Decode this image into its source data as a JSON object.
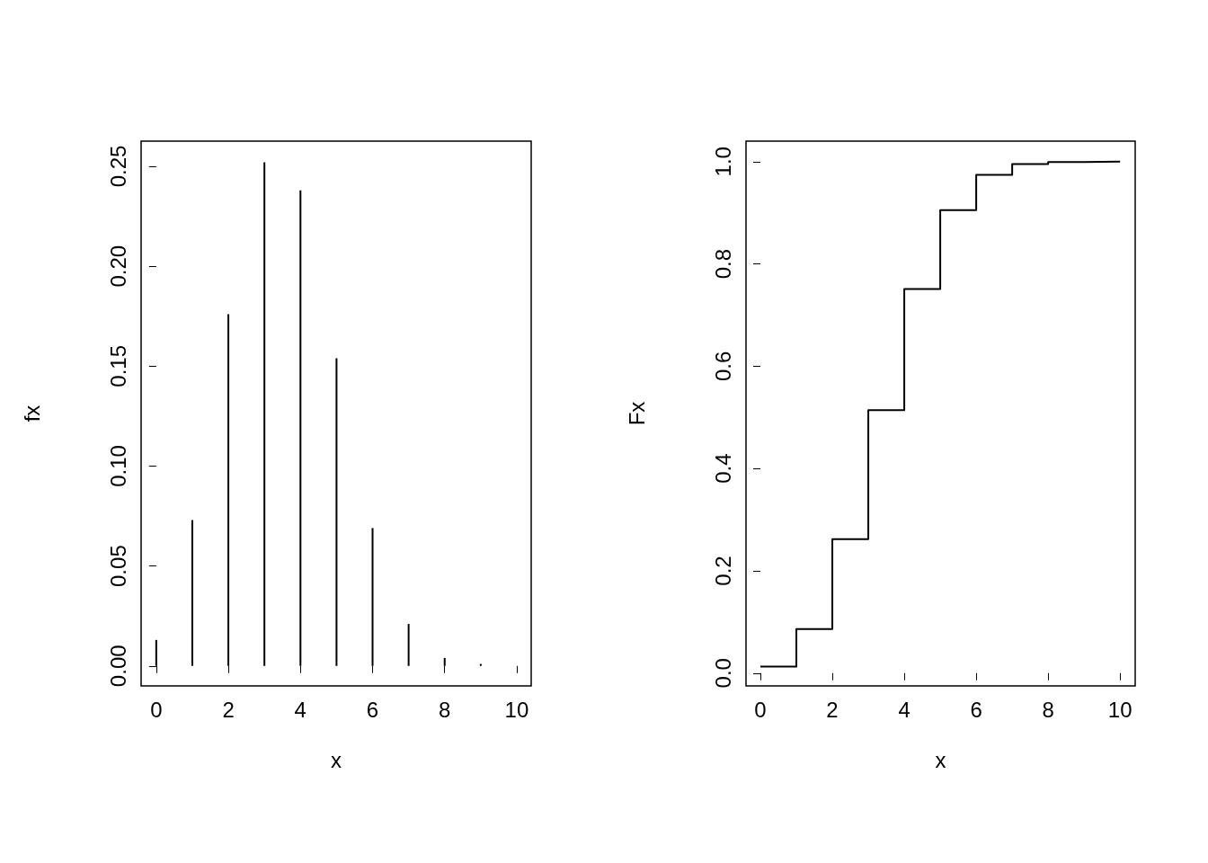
{
  "chart_data": [
    {
      "type": "bar",
      "xlabel": "x",
      "ylabel": "fx",
      "color": "#000000",
      "x": [
        0,
        1,
        2,
        3,
        4,
        5,
        6,
        7,
        8,
        9,
        10
      ],
      "values": [
        0.013,
        0.073,
        0.176,
        0.252,
        0.238,
        0.154,
        0.069,
        0.021,
        0.004,
        0.001,
        0.0
      ],
      "xlim": [
        -0.42,
        10.4
      ],
      "xticks": [
        0,
        2,
        4,
        6,
        8,
        10
      ],
      "ylim": [
        -0.01,
        0.2626
      ],
      "yticks": [
        {
          "value": 0,
          "label": "0.00"
        },
        {
          "value": 0.05,
          "label": "0.05"
        },
        {
          "value": 0.1,
          "label": "0.10"
        },
        {
          "value": 0.15,
          "label": "0.15"
        },
        {
          "value": 0.2,
          "label": "0.20"
        },
        {
          "value": 0.25,
          "label": "0.25"
        }
      ],
      "grid": false
    },
    {
      "type": "step",
      "marker": "none",
      "xlabel": "x",
      "ylabel": "Fx",
      "color": "#000000",
      "x": [
        0,
        1,
        2,
        3,
        4,
        5,
        6,
        7,
        8,
        9,
        10
      ],
      "values": [
        0.013,
        0.086,
        0.262,
        0.514,
        0.751,
        0.905,
        0.974,
        0.995,
        0.999,
        1.0,
        1.0
      ],
      "xlim": [
        -0.4,
        10.42
      ],
      "xticks": [
        0,
        2,
        4,
        6,
        8,
        10
      ],
      "ylim": [
        -0.025,
        1.04
      ],
      "yticks": [
        {
          "value": 0,
          "label": "0.0"
        },
        {
          "value": 0.2,
          "label": "0.2"
        },
        {
          "value": 0.4,
          "label": "0.4"
        },
        {
          "value": 0.6,
          "label": "0.6"
        },
        {
          "value": 0.8,
          "label": "0.8"
        },
        {
          "value": 1,
          "label": "1.0"
        }
      ],
      "grid": false
    }
  ]
}
